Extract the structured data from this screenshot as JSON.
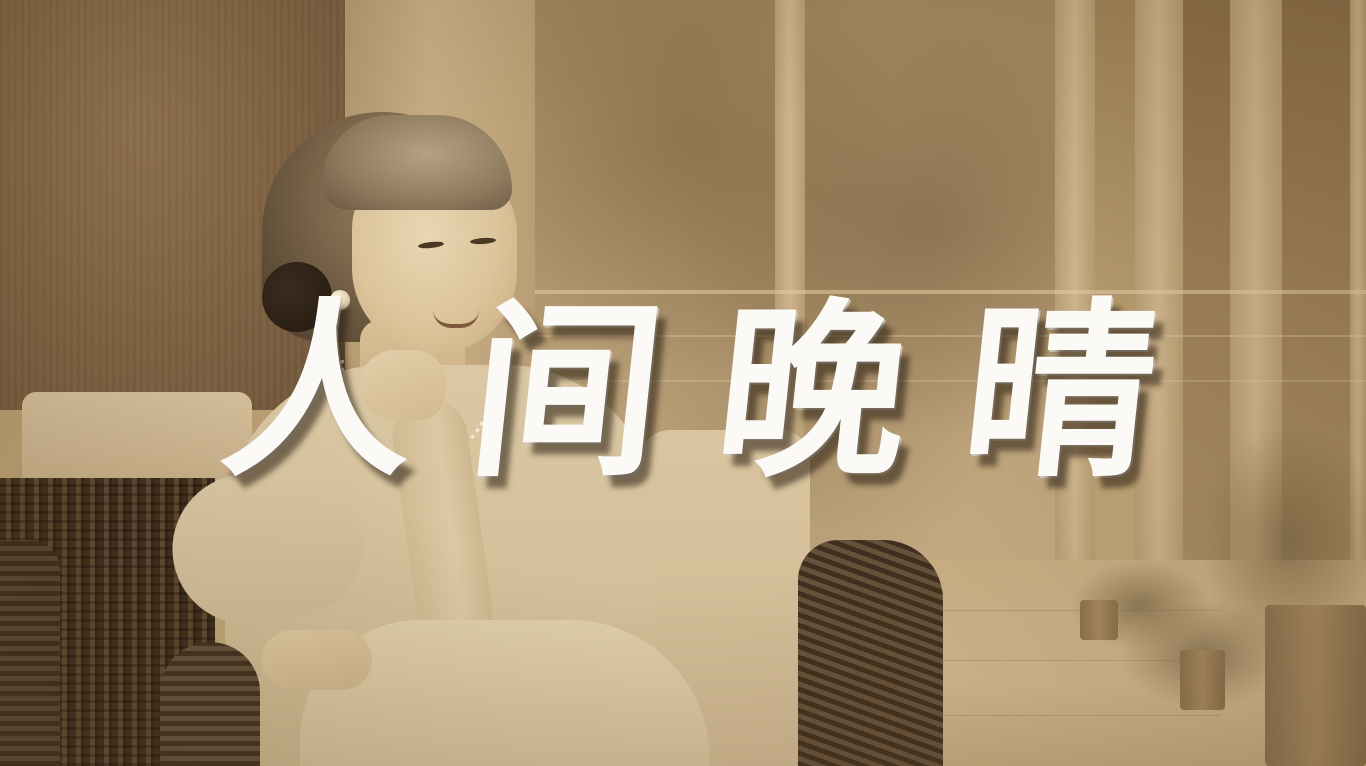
{
  "title": {
    "chars": [
      "人",
      "间",
      "晚",
      "晴"
    ]
  },
  "scene": {
    "palette": {
      "sepia_dark": "#6f5539",
      "sepia_mid": "#b49a6e",
      "sepia_light": "#d6c19c",
      "title_color": "#fbfaf6"
    }
  }
}
